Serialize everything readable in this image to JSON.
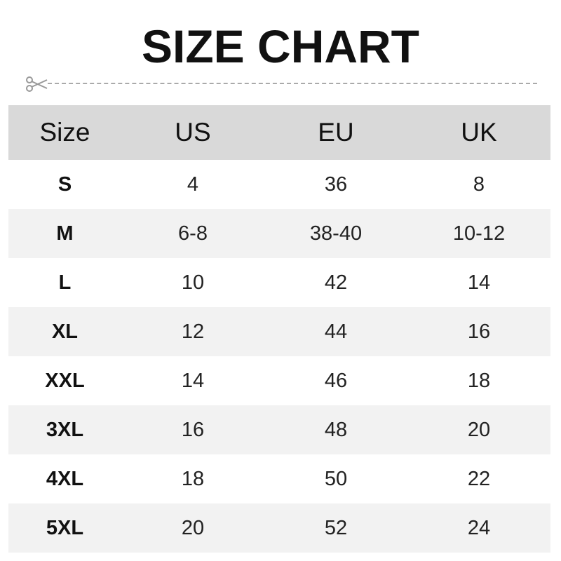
{
  "title": "SIZE CHART",
  "cut_line_icon": "scissors-icon",
  "table": {
    "headers": [
      "Size",
      "US",
      "EU",
      "UK"
    ],
    "rows": [
      [
        "S",
        "4",
        "36",
        "8"
      ],
      [
        "M",
        "6-8",
        "38-40",
        "10-12"
      ],
      [
        "L",
        "10",
        "42",
        "14"
      ],
      [
        "XL",
        "12",
        "44",
        "16"
      ],
      [
        "XXL",
        "14",
        "46",
        "18"
      ],
      [
        "3XL",
        "16",
        "48",
        "20"
      ],
      [
        "4XL",
        "18",
        "50",
        "22"
      ],
      [
        "5XL",
        "20",
        "52",
        "24"
      ]
    ]
  },
  "colors": {
    "header_bg": "#d9d9d9",
    "alt_row_bg": "#f2f2f2"
  }
}
